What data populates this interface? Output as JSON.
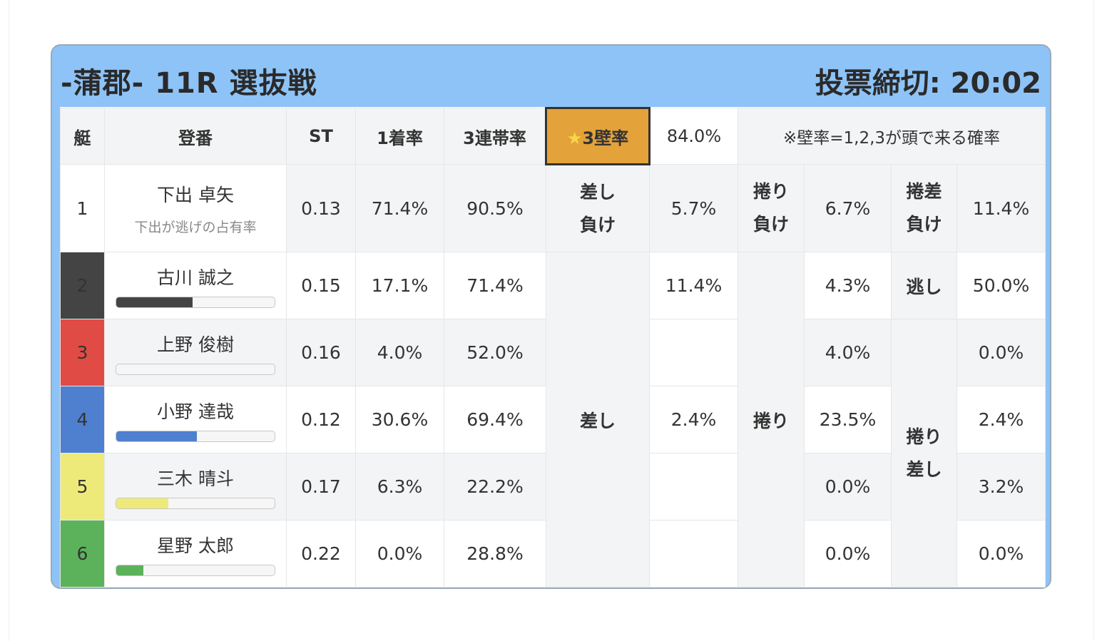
{
  "header": {
    "title": "-蒲郡- 11R 選抜戦",
    "deadline": "投票締切: 20:02"
  },
  "columns": {
    "boat": "艇",
    "racer": "登番",
    "st": "ST",
    "win": "1着率",
    "top3": "3連帯率",
    "wall": "3壁率",
    "wall_value": "84.0%",
    "note": "※壁率=1,2,3が頭で来る確率"
  },
  "racers": [
    {
      "num": "1",
      "name": "下出 卓矢",
      "sub": "下出が逃げの占有率",
      "st": "0.13",
      "win": "71.4%",
      "top3": "90.5%",
      "color": "#ffffff",
      "text_color": "#333333"
    },
    {
      "num": "2",
      "name": "古川 誠之",
      "st": "0.15",
      "win": "17.1%",
      "top3": "71.4%",
      "color": "#444444",
      "text_color": "#ffffff",
      "bar": 0.48
    },
    {
      "num": "3",
      "name": "上野 俊樹",
      "st": "0.16",
      "win": "4.0%",
      "top3": "52.0%",
      "color": "#e04b45",
      "text_color": "#ffffff",
      "bar": 0.0
    },
    {
      "num": "4",
      "name": "小野 達哉",
      "st": "0.12",
      "win": "30.6%",
      "top3": "69.4%",
      "color": "#4f7fcf",
      "text_color": "#ffffff",
      "bar": 0.51
    },
    {
      "num": "5",
      "name": "三木 晴斗",
      "st": "0.17",
      "win": "6.3%",
      "top3": "22.2%",
      "color": "#eeea7a",
      "text_color": "#333333",
      "bar": 0.33
    },
    {
      "num": "6",
      "name": "星野 太郎",
      "st": "0.22",
      "win": "0.0%",
      "top3": "28.8%",
      "color": "#5cb25a",
      "text_color": "#ffffff",
      "bar": 0.17
    }
  ],
  "kimarite": {
    "sashi_make_label": "差し負け",
    "sashi_make_line1": "差し",
    "sashi_make_line2": "負け",
    "sashi_make_value": "5.7%",
    "makuri_make_line1": "捲り",
    "makuri_make_line2": "負け",
    "makuri_make_value": "6.7%",
    "makurisashi_make_line1": "捲差",
    "makurisashi_make_line2": "負け",
    "makurisashi_make_value": "11.4%",
    "sashi_label": "差し",
    "sashi_values": [
      "11.4%",
      "",
      "2.4%",
      "",
      ""
    ],
    "makuri_label": "捲り",
    "makuri_values": [
      "4.3%",
      "4.0%",
      "23.5%",
      "0.0%",
      "0.0%"
    ],
    "nige_label": "逃し",
    "nige_value": "50.0%",
    "makurisashi_line1": "捲り",
    "makurisashi_line2": "差し",
    "makurisashi_values": [
      "0.0%",
      "2.4%",
      "3.2%",
      "0.0%"
    ]
  },
  "bar_color_default": "#f6f6f6"
}
